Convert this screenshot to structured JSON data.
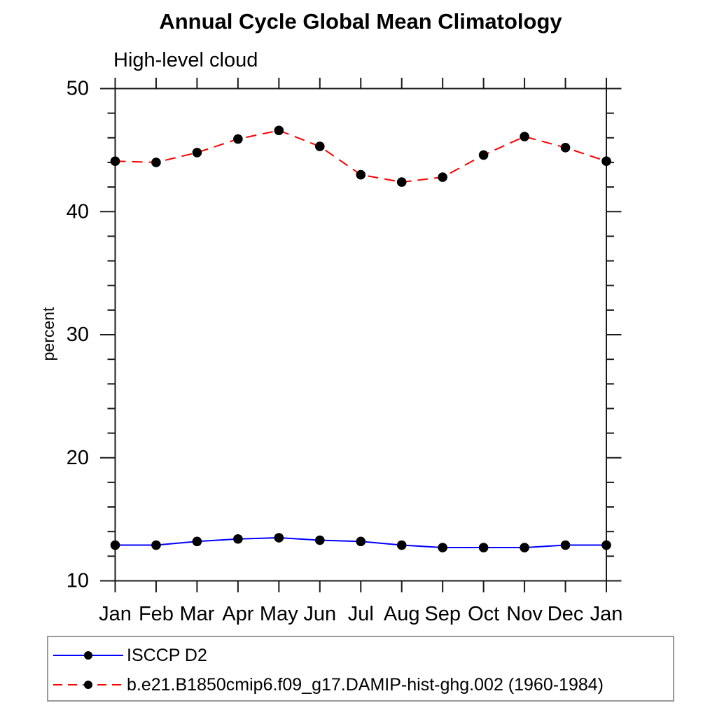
{
  "chart": {
    "title": "Annual Cycle Global Mean Climatology",
    "subtitle": "High-level cloud",
    "ylabel": "percent"
  },
  "chart_data": {
    "type": "line",
    "title": "Annual Cycle Global Mean Climatology",
    "subtitle": "High-level cloud",
    "xlabel": "",
    "ylabel": "percent",
    "categories": [
      "Jan",
      "Feb",
      "Mar",
      "Apr",
      "May",
      "Jun",
      "Jul",
      "Aug",
      "Sep",
      "Oct",
      "Nov",
      "Dec",
      "Jan"
    ],
    "series": [
      {
        "name": "ISCCP D2",
        "color": "#0000ff",
        "line_style": "solid",
        "marker": "filled-circle",
        "marker_color": "#000000",
        "values": [
          12.9,
          12.9,
          13.2,
          13.4,
          13.5,
          13.3,
          13.2,
          12.9,
          12.7,
          12.7,
          12.7,
          12.9,
          12.9
        ]
      },
      {
        "name": "b.e21.B1850cmip6.f09_g17.DAMIP-hist-ghg.002 (1960-1984)",
        "color": "#ff0000",
        "line_style": "dashed",
        "marker": "filled-circle",
        "marker_color": "#000000",
        "values": [
          44.1,
          44.0,
          44.8,
          45.9,
          46.6,
          45.3,
          43.0,
          42.4,
          42.8,
          44.6,
          46.1,
          45.2,
          44.1
        ]
      }
    ],
    "ylim": [
      10,
      50
    ],
    "yticks": [
      10,
      20,
      30,
      40,
      50
    ],
    "y_minor_step": 2,
    "grid": false,
    "axis_color": "#1a1a1a",
    "legend_position": "bottom-left"
  },
  "legend": {
    "entries": [
      {
        "label": "ISCCP D2"
      },
      {
        "label": "b.e21.B1850cmip6.f09_g17.DAMIP-hist-ghg.002 (1960-1984)"
      }
    ]
  }
}
